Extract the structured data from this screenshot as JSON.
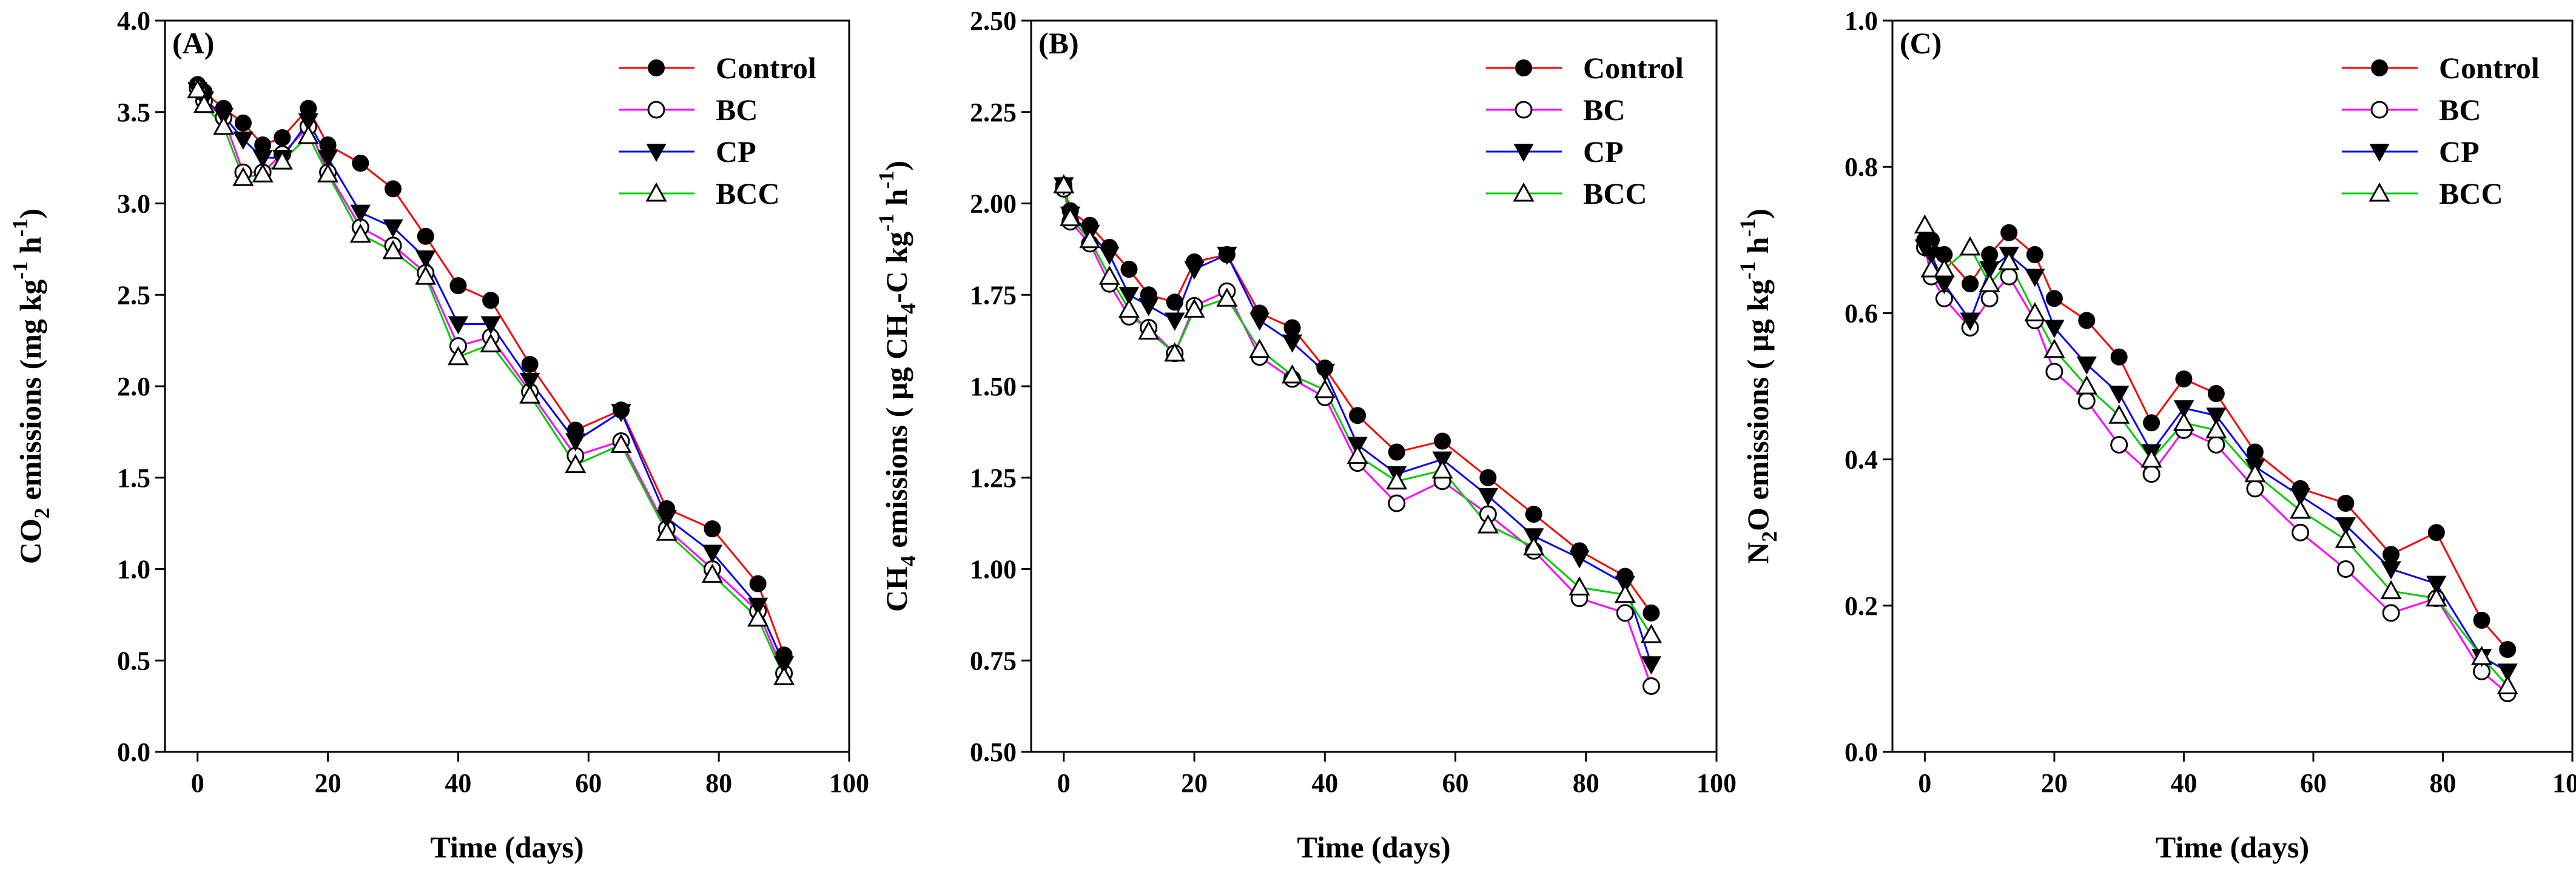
{
  "chart_data": [
    {
      "type": "line",
      "panel_label": "(A)",
      "ylabel": {
        "prefix": "CO",
        "sub": "2",
        "rest": " emissions (mg kg",
        "sup1": "-1",
        "mid": " h",
        "sup2": "-1",
        "end": ")"
      },
      "xlabel": "Time (days)",
      "xlim": [
        -5,
        100
      ],
      "ylim": [
        0.0,
        4.0
      ],
      "x_ticks": [
        0,
        20,
        40,
        60,
        80,
        100
      ],
      "y_ticks": [
        "0.0",
        "0.5",
        "1.0",
        "1.5",
        "2.0",
        "2.5",
        "3.0",
        "3.5",
        "4.0"
      ],
      "x": [
        0,
        1,
        4,
        7,
        10,
        13,
        17,
        20,
        25,
        30,
        35,
        40,
        45,
        51,
        58,
        65,
        72,
        79,
        86,
        90
      ],
      "series": [
        {
          "name": "Control",
          "color": "#ff0000",
          "marker": "circle-filled",
          "values": [
            3.65,
            3.61,
            3.52,
            3.44,
            3.32,
            3.36,
            3.52,
            3.32,
            3.22,
            3.08,
            2.82,
            2.55,
            2.47,
            2.12,
            1.76,
            1.87,
            1.33,
            1.22,
            0.92,
            0.53
          ]
        },
        {
          "name": "BC",
          "color": "#ff00ff",
          "marker": "circle-open",
          "values": [
            3.63,
            3.56,
            3.47,
            3.17,
            3.17,
            3.27,
            3.42,
            3.17,
            2.87,
            2.77,
            2.62,
            2.22,
            2.27,
            1.97,
            1.62,
            1.7,
            1.22,
            1.0,
            0.77,
            0.43
          ]
        },
        {
          "name": "CP",
          "color": "#0000ff",
          "marker": "triangle-down-filled",
          "values": [
            3.62,
            3.57,
            3.48,
            3.35,
            3.25,
            3.25,
            3.45,
            3.25,
            2.95,
            2.87,
            2.7,
            2.34,
            2.34,
            2.03,
            1.7,
            1.86,
            1.28,
            1.09,
            0.8,
            0.48
          ]
        },
        {
          "name": "BCC",
          "color": "#00cc00",
          "marker": "triangle-up-open",
          "values": [
            3.62,
            3.54,
            3.42,
            3.14,
            3.16,
            3.23,
            3.37,
            3.16,
            2.83,
            2.74,
            2.6,
            2.16,
            2.23,
            1.95,
            1.57,
            1.68,
            1.2,
            0.97,
            0.73,
            0.41
          ]
        }
      ],
      "legend_position": "top-right"
    },
    {
      "type": "line",
      "panel_label": "(B)",
      "ylabel": {
        "prefix": "CH",
        "sub": "4",
        "rest": " emissions ( µg CH",
        "sub2": "4",
        "mid": "-C kg",
        "sup1": "-1",
        "mid2": " h",
        "sup2": "-1",
        "end": ")"
      },
      "xlabel": "Time (days)",
      "xlim": [
        -5,
        100
      ],
      "ylim": [
        0.5,
        2.5
      ],
      "x_ticks": [
        0,
        20,
        40,
        60,
        80,
        100
      ],
      "y_ticks": [
        "0.50",
        "0.75",
        "1.00",
        "1.25",
        "1.50",
        "1.75",
        "2.00",
        "2.25",
        "2.50"
      ],
      "x": [
        0,
        1,
        4,
        7,
        10,
        13,
        17,
        20,
        25,
        30,
        35,
        40,
        45,
        51,
        58,
        65,
        72,
        79,
        86,
        90
      ],
      "series": [
        {
          "name": "Control",
          "color": "#ff0000",
          "marker": "circle-filled",
          "values": [
            2.05,
            1.98,
            1.94,
            1.88,
            1.82,
            1.75,
            1.73,
            1.84,
            1.86,
            1.7,
            1.66,
            1.55,
            1.42,
            1.32,
            1.35,
            1.25,
            1.15,
            1.05,
            0.98,
            0.88
          ]
        },
        {
          "name": "BC",
          "color": "#ff00ff",
          "marker": "circle-open",
          "values": [
            2.04,
            1.95,
            1.89,
            1.78,
            1.69,
            1.66,
            1.59,
            1.72,
            1.76,
            1.58,
            1.52,
            1.47,
            1.29,
            1.18,
            1.24,
            1.15,
            1.05,
            0.92,
            0.88,
            0.68
          ]
        },
        {
          "name": "CP",
          "color": "#0000ff",
          "marker": "triangle-down-filled",
          "values": [
            2.05,
            1.97,
            1.92,
            1.86,
            1.75,
            1.72,
            1.68,
            1.82,
            1.86,
            1.68,
            1.62,
            1.54,
            1.34,
            1.26,
            1.3,
            1.2,
            1.09,
            1.03,
            0.96,
            0.74
          ]
        },
        {
          "name": "BCC",
          "color": "#00cc00",
          "marker": "triangle-up-open",
          "values": [
            2.05,
            1.96,
            1.9,
            1.8,
            1.71,
            1.65,
            1.59,
            1.71,
            1.74,
            1.6,
            1.53,
            1.49,
            1.31,
            1.24,
            1.27,
            1.12,
            1.06,
            0.95,
            0.93,
            0.82
          ]
        }
      ],
      "legend_position": "top-right"
    },
    {
      "type": "line",
      "panel_label": "(C)",
      "ylabel": {
        "prefix": "N",
        "sub": "2",
        "rest": "O emissions ( µg kg",
        "sup1": "-1",
        "mid": " h",
        "sup2": "-1",
        "end": ")"
      },
      "xlabel": "Time (days)",
      "xlim": [
        -5,
        100
      ],
      "ylim": [
        0.0,
        1.0
      ],
      "x_ticks": [
        0,
        20,
        40,
        60,
        80,
        100
      ],
      "y_ticks": [
        "0.0",
        "0.2",
        "0.4",
        "0.6",
        "0.8",
        "1.0"
      ],
      "x": [
        0,
        1,
        3,
        7,
        10,
        13,
        17,
        20,
        25,
        30,
        35,
        40,
        45,
        51,
        58,
        65,
        72,
        79,
        86,
        90
      ],
      "series": [
        {
          "name": "Control",
          "color": "#ff0000",
          "marker": "circle-filled",
          "values": [
            0.7,
            0.7,
            0.68,
            0.64,
            0.68,
            0.71,
            0.68,
            0.62,
            0.59,
            0.54,
            0.45,
            0.51,
            0.49,
            0.41,
            0.36,
            0.34,
            0.27,
            0.3,
            0.18,
            0.14
          ]
        },
        {
          "name": "BC",
          "color": "#ff00ff",
          "marker": "circle-open",
          "values": [
            0.69,
            0.65,
            0.62,
            0.58,
            0.62,
            0.65,
            0.59,
            0.52,
            0.48,
            0.42,
            0.38,
            0.44,
            0.42,
            0.36,
            0.3,
            0.25,
            0.19,
            0.21,
            0.11,
            0.08
          ]
        },
        {
          "name": "CP",
          "color": "#0000ff",
          "marker": "triangle-down-filled",
          "values": [
            0.69,
            0.68,
            0.64,
            0.59,
            0.66,
            0.68,
            0.65,
            0.58,
            0.53,
            0.49,
            0.41,
            0.47,
            0.46,
            0.39,
            0.35,
            0.31,
            0.25,
            0.23,
            0.13,
            0.11
          ]
        },
        {
          "name": "BCC",
          "color": "#00cc00",
          "marker": "triangle-up-open",
          "values": [
            0.72,
            0.66,
            0.66,
            0.69,
            0.64,
            0.67,
            0.6,
            0.55,
            0.5,
            0.46,
            0.4,
            0.45,
            0.44,
            0.38,
            0.33,
            0.29,
            0.22,
            0.21,
            0.13,
            0.09
          ]
        }
      ],
      "legend_position": "top-right"
    }
  ]
}
